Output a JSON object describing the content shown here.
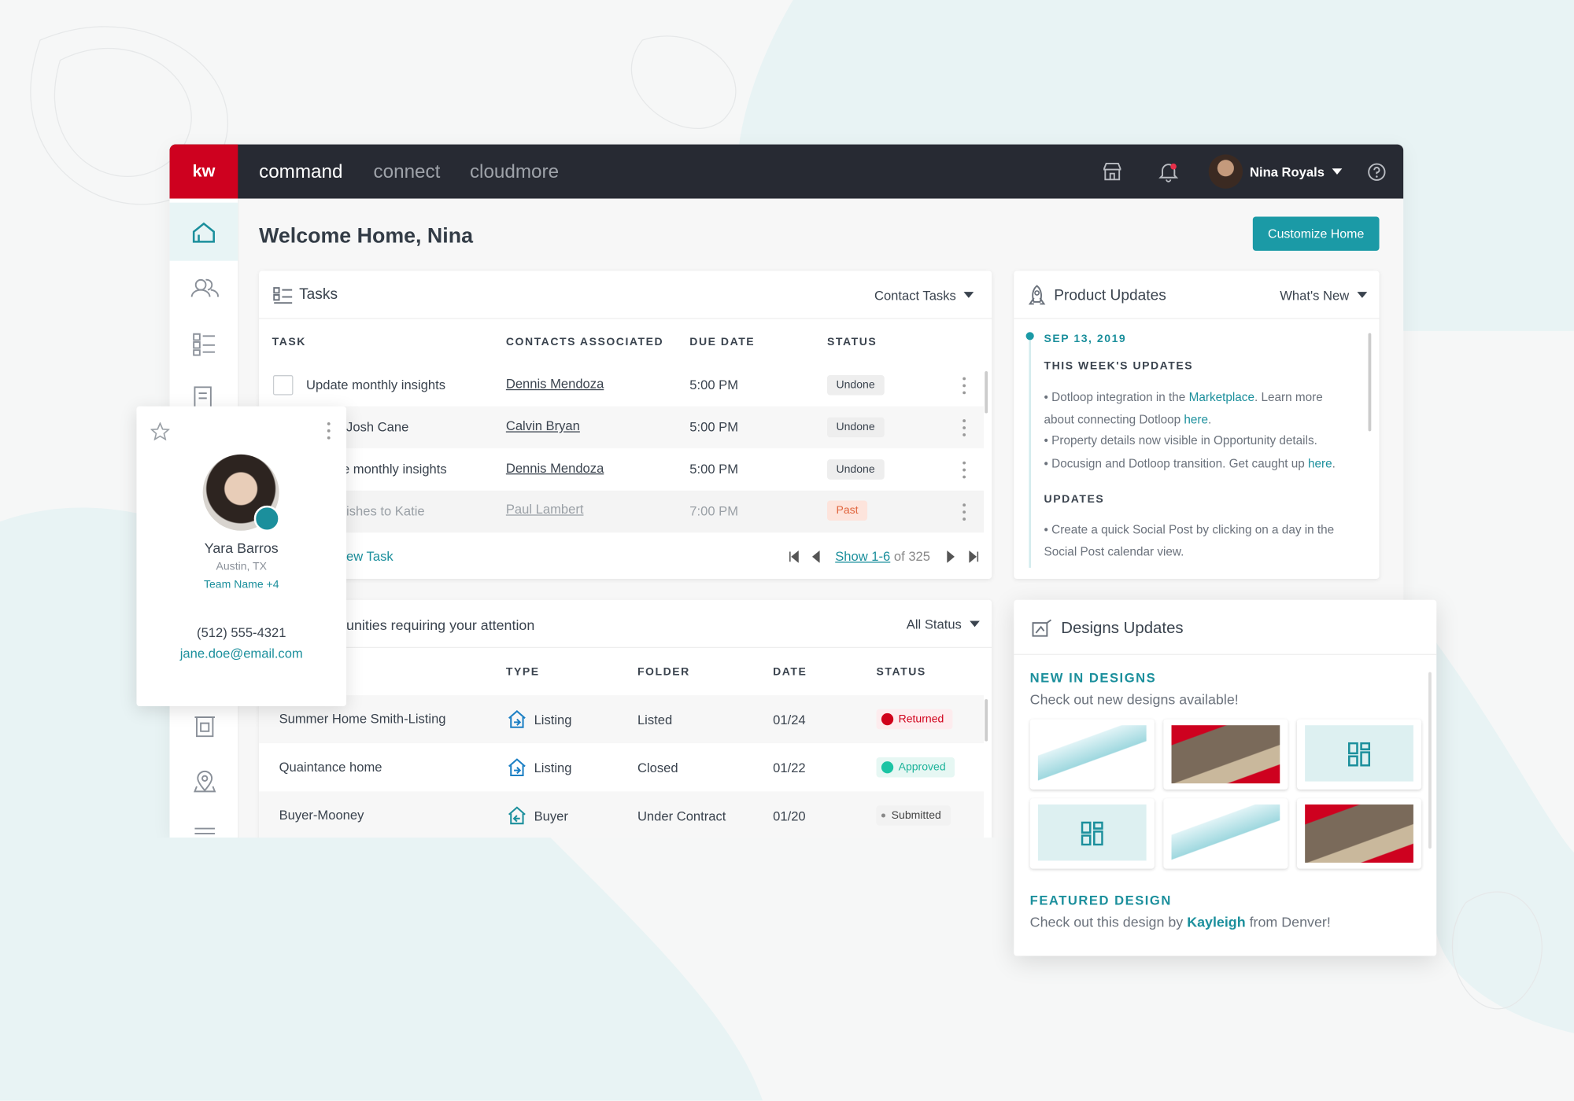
{
  "nav": {
    "logo": "kw",
    "tabs": [
      "command",
      "connect",
      "cloudmore"
    ],
    "user": "Nina Royals"
  },
  "page": {
    "title": "Welcome Home, Nina",
    "button": "Customize Home"
  },
  "tasks": {
    "title": "Tasks",
    "filter": "Contact Tasks",
    "columns": [
      "TASK",
      "CONTACTS ASSOCIATED",
      "DUE DATE",
      "STATUS"
    ],
    "rows": [
      [
        "Update monthly insights",
        "Dennis Mendoza",
        "5:00 PM",
        "Undone"
      ],
      [
        "Josh Cane",
        "Calvin Bryan",
        "5:00 PM",
        "Undone"
      ],
      [
        "e monthly insights",
        "Dennis Mendoza",
        "5:00 PM",
        "Undone"
      ],
      [
        "ishes to Katie",
        "Paul Lambert",
        "7:00 PM",
        "Past"
      ]
    ],
    "add": "ew Task",
    "pagination": {
      "link": "Show 1-6",
      "rest": "of 325"
    }
  },
  "product_updates": {
    "title": "Product Updates",
    "filter": "What's New",
    "date": "SEP 13, 2019",
    "heading": "THIS WEEK'S UPDATES",
    "items": [
      [
        "• Dotloop integration in the ",
        "Marketplace",
        ". Learn more about connecting Dotloop ",
        "here",
        "."
      ],
      [
        "• Property details now visible in Opportunity details."
      ],
      [
        "• Docusign and Dotloop transition. Get caught up ",
        "here",
        "."
      ]
    ],
    "heading2": "UPDATES",
    "items2": [
      [
        "• Create a quick Social Post by clicking on a day in the Social Post calendar view."
      ]
    ]
  },
  "opportunities": {
    "title": "unities requiring your attention",
    "filter": "All Status",
    "columns": [
      "TYPE",
      "FOLDER",
      "DATE",
      "STATUS"
    ],
    "rows": [
      [
        "Summer Home Smith-Listing",
        "Listing",
        "Listed",
        "01/24",
        "Returned"
      ],
      [
        "Quaintance home",
        "Listing",
        "Closed",
        "01/22",
        "Approved"
      ],
      [
        "Buyer-Mooney",
        "Buyer",
        "Under Contract",
        "01/20",
        "Submitted"
      ]
    ]
  },
  "designs": {
    "title": "Designs Updates",
    "new_heading": "NEW IN DESIGNS",
    "new_text": "Check out new designs available!",
    "featured_heading": "FEATURED DESIGN",
    "featured_text": [
      "Check out this design by ",
      "Kayleigh",
      " from Denver!"
    ]
  },
  "contact": {
    "name": "Yara Barros",
    "location": "Austin, TX",
    "team": "Team Name +4",
    "phone": "(512) 555-4321",
    "email": "jane.doe@email.com"
  }
}
